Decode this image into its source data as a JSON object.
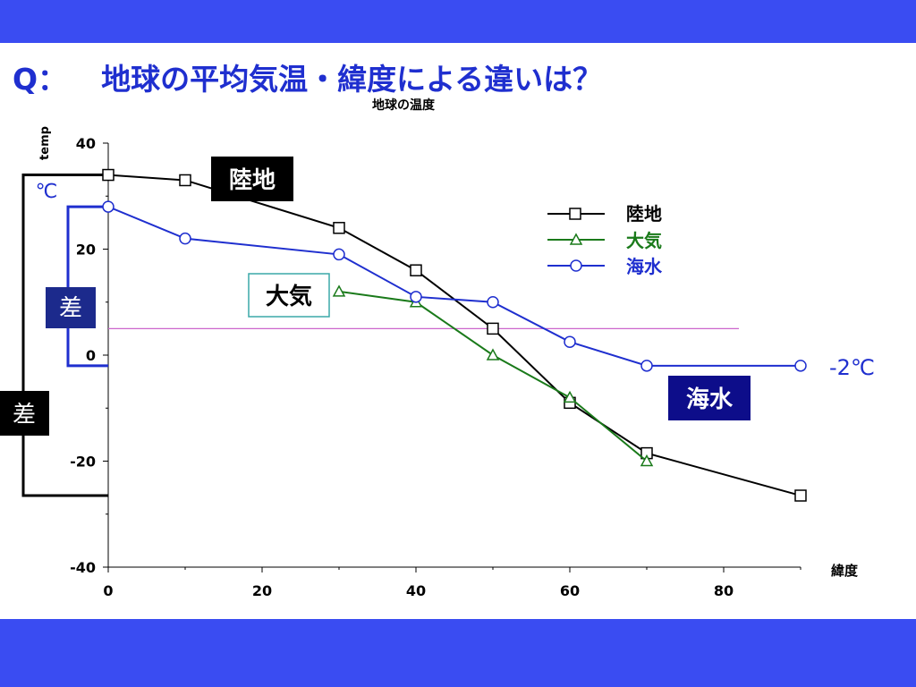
{
  "slide": {
    "question_prefix": "Q：",
    "question_text": "地球の平均気温・緯度による違いは？"
  },
  "colors": {
    "frame": "#3a4cf2",
    "title": "#1f2fcf",
    "land": "#000000",
    "air": "#1a7a1a",
    "sea": "#1f2fcf",
    "refline": "#cc66cc",
    "badge_sea": "#0d0d8a",
    "badge_diff": "#1c2a8c"
  },
  "annotations": {
    "land_badge": "陸地",
    "air_badge": "大気",
    "sea_badge": "海水",
    "unit_celsius": "℃",
    "diff_small": "差",
    "diff_large": "差",
    "sea_end_value": "-2℃"
  },
  "chart_data": {
    "type": "line",
    "title": "地球の温度",
    "xlabel": "緯度",
    "ylabel": "temp",
    "xlim": [
      0,
      90
    ],
    "ylim": [
      -40,
      40
    ],
    "xticks": [
      0,
      20,
      40,
      60,
      80
    ],
    "yticks": [
      -40,
      -20,
      0,
      20,
      40
    ],
    "grid": false,
    "legend_position": "top-right",
    "reference_line_y": 5,
    "series": [
      {
        "name": "陸地",
        "marker": "square",
        "x": [
          0,
          10,
          30,
          40,
          50,
          60,
          70,
          90
        ],
        "y": [
          34,
          33,
          24,
          16,
          5,
          -9,
          -18.5,
          -26.5
        ]
      },
      {
        "name": "大気",
        "marker": "triangle",
        "x": [
          30,
          40,
          50,
          60,
          70
        ],
        "y": [
          12,
          10,
          0,
          -8,
          -20
        ]
      },
      {
        "name": "海水",
        "marker": "circle",
        "x": [
          0,
          10,
          30,
          40,
          50,
          60,
          70,
          90
        ],
        "y": [
          28,
          22,
          19,
          11,
          10,
          2.5,
          -2,
          -2
        ]
      }
    ]
  }
}
